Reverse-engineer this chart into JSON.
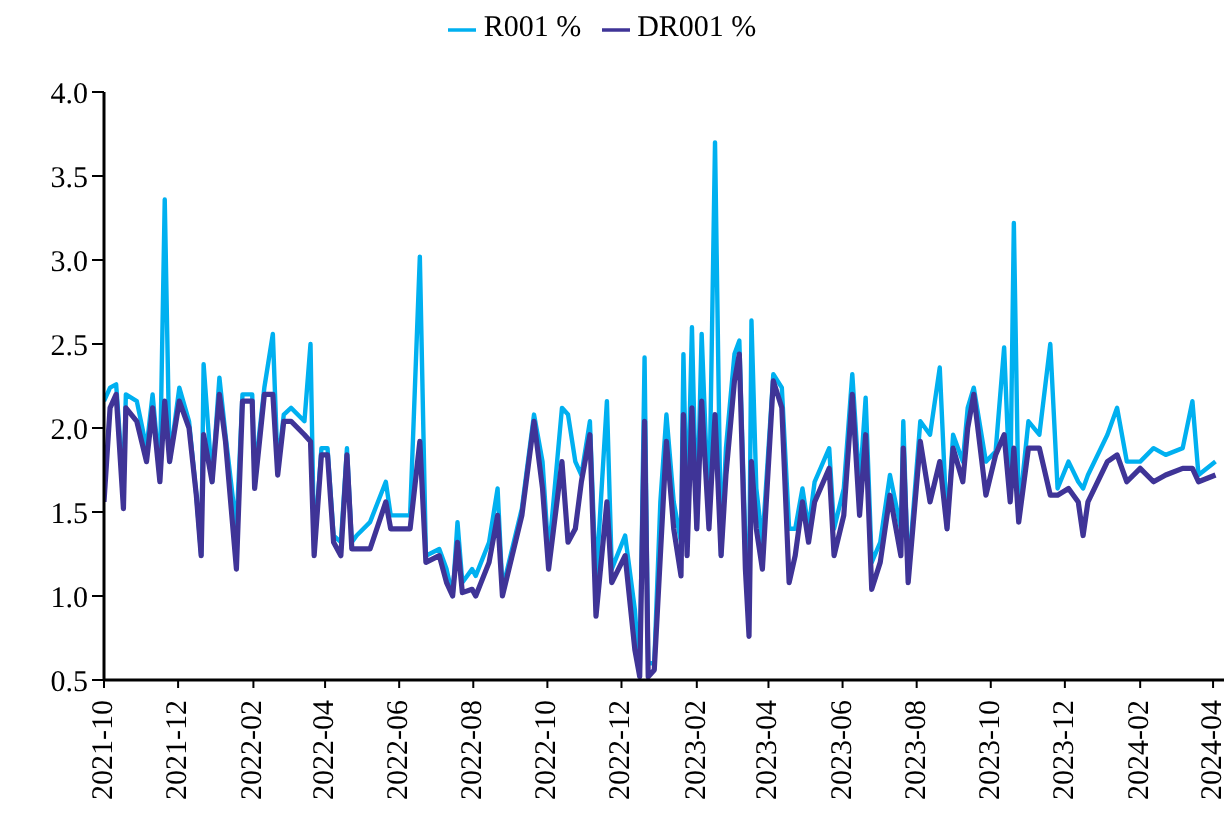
{
  "chart_data": {
    "type": "line",
    "legend": "top",
    "grid": false,
    "xlim": [
      "2021-10-01",
      "2024-04-10"
    ],
    "xticks": [
      "2021-10",
      "2021-12",
      "2022-02",
      "2022-04",
      "2022-06",
      "2022-08",
      "2022-10",
      "2022-12",
      "2023-02",
      "2023-04",
      "2023-06",
      "2023-08",
      "2023-10",
      "2023-12",
      "2024-02",
      "2024-04"
    ],
    "ylim": [
      0.5,
      4.0
    ],
    "yticks": [
      {
        "value": 0.5,
        "label": "0.5"
      },
      {
        "value": 1.0,
        "label": "1.0"
      },
      {
        "value": 1.5,
        "label": "1.5"
      },
      {
        "value": 2.0,
        "label": "2.0"
      },
      {
        "value": 2.5,
        "label": "2.5"
      },
      {
        "value": 3.0,
        "label": "3.0"
      },
      {
        "value": 3.5,
        "label": "3.5"
      },
      {
        "value": 4.0,
        "label": "4.0"
      }
    ],
    "x": [
      "2021-10-01",
      "2021-10-06",
      "2021-10-11",
      "2021-10-17",
      "2021-10-19",
      "2021-10-28",
      "2021-11-05",
      "2021-11-10",
      "2021-11-16",
      "2021-11-20",
      "2021-11-24",
      "2021-12-02",
      "2021-12-10",
      "2021-12-16",
      "2021-12-20",
      "2021-12-22",
      "2021-12-29",
      "2022-01-04",
      "2022-01-09",
      "2022-01-18",
      "2022-01-23",
      "2022-01-31",
      "2022-02-02",
      "2022-02-10",
      "2022-02-17",
      "2022-02-21",
      "2022-02-26",
      "2022-03-04",
      "2022-03-15",
      "2022-03-20",
      "2022-03-23",
      "2022-03-29",
      "2022-04-03",
      "2022-04-08",
      "2022-04-14",
      "2022-04-19",
      "2022-04-23",
      "2022-04-27",
      "2022-05-08",
      "2022-05-21",
      "2022-05-25",
      "2022-06-10",
      "2022-06-18",
      "2022-06-23",
      "2022-07-04",
      "2022-07-10",
      "2022-07-15",
      "2022-07-19",
      "2022-07-23",
      "2022-07-31",
      "2022-08-03",
      "2022-08-14",
      "2022-08-21",
      "2022-08-25",
      "2022-09-10",
      "2022-09-20",
      "2022-09-27",
      "2022-10-02",
      "2022-10-13",
      "2022-10-18",
      "2022-10-24",
      "2022-10-29",
      "2022-11-05",
      "2022-11-10",
      "2022-11-19",
      "2022-11-23",
      "2022-12-04",
      "2022-12-12",
      "2022-12-16",
      "2022-12-20",
      "2022-12-23",
      "2022-12-28",
      "2023-01-02",
      "2023-01-07",
      "2023-01-13",
      "2023-01-19",
      "2023-01-21",
      "2023-01-24",
      "2023-01-28",
      "2023-02-01",
      "2023-02-05",
      "2023-02-11",
      "2023-02-16",
      "2023-02-21",
      "2023-02-25",
      "2023-03-04",
      "2023-03-08",
      "2023-03-13",
      "2023-03-16",
      "2023-03-18",
      "2023-03-22",
      "2023-03-27",
      "2023-04-05",
      "2023-04-12",
      "2023-04-18",
      "2023-04-23",
      "2023-04-29",
      "2023-05-04",
      "2023-05-09",
      "2023-05-21",
      "2023-05-25",
      "2023-06-02",
      "2023-06-09",
      "2023-06-15",
      "2023-06-20",
      "2023-06-25",
      "2023-07-02",
      "2023-07-10",
      "2023-07-19",
      "2023-07-21",
      "2023-07-25",
      "2023-08-04",
      "2023-08-12",
      "2023-08-20",
      "2023-08-26",
      "2023-08-31",
      "2023-09-08",
      "2023-09-12",
      "2023-09-17",
      "2023-09-27",
      "2023-10-05",
      "2023-10-12",
      "2023-10-17",
      "2023-10-20",
      "2023-10-24",
      "2023-11-01",
      "2023-11-10",
      "2023-11-19",
      "2023-11-25",
      "2023-12-04",
      "2023-12-12",
      "2023-12-16",
      "2023-12-20",
      "2024-01-05",
      "2024-01-13",
      "2024-01-21",
      "2024-02-01",
      "2024-02-12",
      "2024-02-22",
      "2024-03-07",
      "2024-03-15",
      "2024-03-20",
      "2024-04-03"
    ],
    "series": [
      {
        "name": "R001 %",
        "color": "#00b0f0",
        "values": [
          2.16,
          2.24,
          2.26,
          1.64,
          2.2,
          2.16,
          1.88,
          2.2,
          1.72,
          3.36,
          1.8,
          2.24,
          2.04,
          1.6,
          1.24,
          2.38,
          1.68,
          2.3,
          1.96,
          1.4,
          2.2,
          2.2,
          1.72,
          2.24,
          2.56,
          1.76,
          2.08,
          2.12,
          2.04,
          2.5,
          1.28,
          1.88,
          1.88,
          1.36,
          1.32,
          1.88,
          1.32,
          1.36,
          1.44,
          1.68,
          1.48,
          1.48,
          3.02,
          1.24,
          1.28,
          1.16,
          1.0,
          1.44,
          1.08,
          1.16,
          1.12,
          1.32,
          1.64,
          1.04,
          1.52,
          2.08,
          1.8,
          1.24,
          2.12,
          2.08,
          1.8,
          1.72,
          2.04,
          1.08,
          2.16,
          1.16,
          1.36,
          0.92,
          0.52,
          2.42,
          0.6,
          0.6,
          1.56,
          2.08,
          1.56,
          1.32,
          2.44,
          1.4,
          2.6,
          1.4,
          2.56,
          1.44,
          3.7,
          1.24,
          1.88,
          2.44,
          2.52,
          1.32,
          1.0,
          2.64,
          1.64,
          1.32,
          2.32,
          2.24,
          1.4,
          1.4,
          1.64,
          1.4,
          1.68,
          1.88,
          1.4,
          1.64,
          2.32,
          1.64,
          2.18,
          1.2,
          1.32,
          1.72,
          1.4,
          2.04,
          1.12,
          2.04,
          1.96,
          2.36,
          1.4,
          1.96,
          1.8,
          2.12,
          2.24,
          1.8,
          1.86,
          2.48,
          1.6,
          3.22,
          1.48,
          2.04,
          1.96,
          2.5,
          1.64,
          1.8,
          1.68,
          1.64,
          1.72,
          1.96,
          2.12,
          1.8,
          1.8,
          1.88,
          1.84,
          1.88,
          2.16,
          1.72,
          1.8
        ]
      },
      {
        "name": "DR001 %",
        "color": "#3f3497",
        "values": [
          1.56,
          2.12,
          2.2,
          1.52,
          2.12,
          2.04,
          1.8,
          2.12,
          1.68,
          2.16,
          1.8,
          2.16,
          2.0,
          1.6,
          1.24,
          1.96,
          1.68,
          2.2,
          1.92,
          1.16,
          2.16,
          2.16,
          1.64,
          2.2,
          2.2,
          1.72,
          2.04,
          2.04,
          1.96,
          1.92,
          1.24,
          1.84,
          1.84,
          1.32,
          1.24,
          1.84,
          1.28,
          1.28,
          1.28,
          1.56,
          1.4,
          1.4,
          1.92,
          1.2,
          1.24,
          1.08,
          1.0,
          1.32,
          1.02,
          1.04,
          1.0,
          1.2,
          1.48,
          1.0,
          1.48,
          2.04,
          1.64,
          1.16,
          1.8,
          1.32,
          1.4,
          1.68,
          1.96,
          0.88,
          1.56,
          1.08,
          1.24,
          0.68,
          0.52,
          2.04,
          0.52,
          0.56,
          1.24,
          1.92,
          1.4,
          1.12,
          2.08,
          1.24,
          2.12,
          1.4,
          2.16,
          1.4,
          2.08,
          1.24,
          1.72,
          2.28,
          2.44,
          1.16,
          0.76,
          1.8,
          1.4,
          1.16,
          2.28,
          2.12,
          1.08,
          1.24,
          1.56,
          1.32,
          1.56,
          1.76,
          1.24,
          1.48,
          2.2,
          1.48,
          1.96,
          1.04,
          1.2,
          1.6,
          1.24,
          1.88,
          1.08,
          1.92,
          1.56,
          1.8,
          1.4,
          1.88,
          1.68,
          2.0,
          2.2,
          1.6,
          1.84,
          1.96,
          1.56,
          1.88,
          1.44,
          1.88,
          1.88,
          1.6,
          1.6,
          1.64,
          1.56,
          1.36,
          1.56,
          1.8,
          1.84,
          1.68,
          1.76,
          1.68,
          1.72,
          1.76,
          1.76,
          1.68,
          1.72
        ]
      }
    ]
  }
}
